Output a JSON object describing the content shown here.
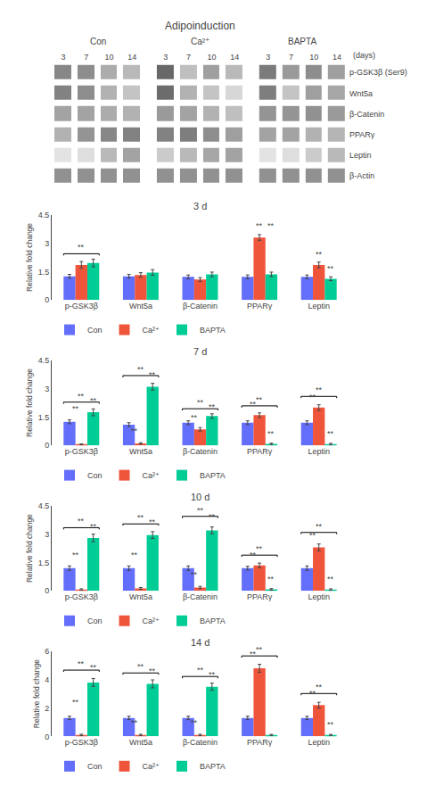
{
  "chart_data": [
    {
      "type": "heatmap",
      "title": "Adipoinduction",
      "groups": [
        "Con",
        "Ca²⁺",
        "BAPTA"
      ],
      "categories": [
        "3",
        "7",
        "10",
        "14"
      ],
      "xlabel": "(days)",
      "rows": [
        "p-GSK3β (Ser9)",
        "Wnt5a",
        "β-Catenin",
        "PPARγ",
        "Leptin",
        "β-Actin"
      ],
      "cells": [
        [
          [
            0.65,
            0.62,
            0.45,
            0.38
          ],
          [
            0.82,
            0.35,
            0.52,
            0.38
          ],
          [
            0.72,
            0.55,
            0.62,
            0.52
          ]
        ],
        [
          [
            0.68,
            0.62,
            0.42,
            0.32
          ],
          [
            0.8,
            0.42,
            0.32,
            0.22
          ],
          [
            0.7,
            0.32,
            0.52,
            0.48
          ]
        ],
        [
          [
            0.5,
            0.5,
            0.45,
            0.42
          ],
          [
            0.55,
            0.5,
            0.42,
            0.35
          ],
          [
            0.58,
            0.58,
            0.6,
            0.55
          ]
        ],
        [
          [
            0.42,
            0.58,
            0.65,
            0.68
          ],
          [
            0.68,
            0.7,
            0.62,
            0.52
          ],
          [
            0.5,
            0.5,
            0.42,
            0.4
          ]
        ],
        [
          [
            0.15,
            0.18,
            0.38,
            0.5
          ],
          [
            0.28,
            0.38,
            0.48,
            0.5
          ],
          [
            0.15,
            0.18,
            0.28,
            0.38
          ]
        ],
        [
          [
            0.6,
            0.6,
            0.6,
            0.6
          ],
          [
            0.6,
            0.6,
            0.6,
            0.6
          ],
          [
            0.6,
            0.6,
            0.6,
            0.6
          ]
        ]
      ],
      "zlim": [
        0,
        1
      ]
    },
    {
      "type": "bar",
      "title": "3 d",
      "categories": [
        "p-GSK3β",
        "Wnt5a",
        "β-Catenin",
        "PPARγ",
        "Leptin"
      ],
      "ylabel": "Relative fold change",
      "ylim": [
        0,
        4.5
      ],
      "yticks": [
        0,
        1.5,
        3,
        4.5
      ],
      "grid": false,
      "legend": "bottom",
      "series": [
        {
          "name": "Con",
          "color": "#636efa",
          "values": [
            1.25,
            1.25,
            1.22,
            1.22,
            1.22
          ],
          "errors": [
            0.1,
            0.1,
            0.1,
            0.1,
            0.1
          ]
        },
        {
          "name": "Ca²⁺",
          "color": "#EF553B",
          "values": [
            1.85,
            1.32,
            1.08,
            3.3,
            1.85
          ],
          "errors": [
            0.18,
            0.12,
            0.1,
            0.15,
            0.15
          ]
        },
        {
          "name": "BAPTA",
          "color": "#00cc96",
          "values": [
            1.95,
            1.45,
            1.35,
            1.35,
            1.12
          ],
          "errors": [
            0.2,
            0.15,
            0.12,
            0.12,
            0.1
          ]
        }
      ],
      "annotations": [
        {
          "text": "**",
          "category": "p-GSK3β",
          "series": [
            "Con",
            "BAPTA"
          ],
          "y": 2.35,
          "shape": "bracket"
        },
        {
          "text": "**",
          "category": "PPARγ",
          "series": "Ca²⁺",
          "y": 3.6
        },
        {
          "text": "**",
          "category": "PPARγ",
          "series": "BAPTA",
          "y": 3.6
        },
        {
          "text": "**",
          "category": "Leptin",
          "series": "Ca²⁺",
          "y": 2.1
        },
        {
          "text": "**",
          "category": "Leptin",
          "series": "BAPTA",
          "y": 1.35
        }
      ]
    },
    {
      "type": "bar",
      "title": "7 d",
      "categories": [
        "p-GSK3β",
        "Wnt5a",
        "β-Catenin",
        "PPARγ",
        "Leptin"
      ],
      "ylabel": "Relative fold change",
      "ylim": [
        0,
        4.5
      ],
      "yticks": [
        0,
        1.5,
        3,
        4.5
      ],
      "grid": false,
      "legend": "bottom",
      "series": [
        {
          "name": "Con",
          "color": "#636efa",
          "values": [
            1.25,
            1.1,
            1.2,
            1.2,
            1.2
          ],
          "errors": [
            0.1,
            0.1,
            0.1,
            0.1,
            0.1
          ]
        },
        {
          "name": "Ca²⁺",
          "color": "#EF553B",
          "values": [
            0.05,
            0.1,
            0.85,
            1.6,
            2.0
          ],
          "errors": [
            0.03,
            0.04,
            0.09,
            0.12,
            0.15
          ]
        },
        {
          "name": "BAPTA",
          "color": "#00cc96",
          "values": [
            1.75,
            3.1,
            1.55,
            0.08,
            0.07
          ],
          "errors": [
            0.18,
            0.18,
            0.12,
            0.04,
            0.04
          ]
        }
      ],
      "annotations": [
        {
          "text": "**",
          "category": "p-GSK3β",
          "series": [
            "Con",
            "BAPTA"
          ],
          "y": 2.2,
          "shape": "bracket"
        },
        {
          "text": "**",
          "category": "p-GSK3β",
          "series": [
            "Con",
            "Ca²⁺"
          ],
          "y": 1.6
        },
        {
          "text": "**",
          "category": "p-GSK3β",
          "series": "BAPTA",
          "y": 2.05
        },
        {
          "text": "**",
          "category": "Wnt5a",
          "series": [
            "Con",
            "BAPTA"
          ],
          "y": 3.6,
          "shape": "bracket"
        },
        {
          "text": "**",
          "category": "Wnt5a",
          "series": [
            "Con",
            "Ca²⁺"
          ],
          "y": 0.45
        },
        {
          "text": "**",
          "category": "Wnt5a",
          "series": "BAPTA",
          "y": 3.4
        },
        {
          "text": "**",
          "category": "β-Catenin",
          "series": [
            "Con",
            "BAPTA"
          ],
          "y": 1.85,
          "shape": "bracket"
        },
        {
          "text": "**",
          "category": "β-Catenin",
          "series": [
            "Con",
            "Ca²⁺"
          ],
          "y": 1.15
        },
        {
          "text": "**",
          "category": "β-Catenin",
          "series": "BAPTA",
          "y": 1.7
        },
        {
          "text": "**",
          "category": "PPARγ",
          "series": [
            "Con",
            "BAPTA"
          ],
          "y": 2.0,
          "shape": "bracket"
        },
        {
          "text": "**",
          "category": "PPARγ",
          "series": [
            "Con",
            "Ca²⁺"
          ],
          "y": 1.85
        },
        {
          "text": "**",
          "category": "PPARγ",
          "series": "BAPTA",
          "y": 0.3
        },
        {
          "text": "**",
          "category": "Leptin",
          "series": [
            "Con",
            "BAPTA"
          ],
          "y": 2.5,
          "shape": "bracket"
        },
        {
          "text": "**",
          "category": "Leptin",
          "series": [
            "Con",
            "Ca²⁺"
          ],
          "y": 2.25
        },
        {
          "text": "**",
          "category": "Leptin",
          "series": "BAPTA",
          "y": 0.28
        }
      ]
    },
    {
      "type": "bar",
      "title": "10 d",
      "categories": [
        "p-GSK3β",
        "Wnt5a",
        "β-Catenin",
        "PPARγ",
        "Leptin"
      ],
      "ylabel": "Relative fold change",
      "ylim": [
        0,
        4.5
      ],
      "yticks": [
        0,
        1.5,
        3,
        4.5
      ],
      "grid": false,
      "legend": "bottom",
      "series": [
        {
          "name": "Con",
          "color": "#636efa",
          "values": [
            1.2,
            1.2,
            1.2,
            1.2,
            1.2
          ],
          "errors": [
            0.12,
            0.12,
            0.12,
            0.1,
            0.12
          ]
        },
        {
          "name": "Ca²⁺",
          "color": "#EF553B",
          "values": [
            0.07,
            0.13,
            0.18,
            1.35,
            2.3
          ],
          "errors": [
            0.04,
            0.05,
            0.06,
            0.12,
            0.18
          ]
        },
        {
          "name": "BAPTA",
          "color": "#00cc96",
          "values": [
            2.8,
            2.95,
            3.2,
            0.08,
            0.07
          ],
          "errors": [
            0.2,
            0.18,
            0.18,
            0.04,
            0.04
          ]
        }
      ],
      "annotations": [
        {
          "text": "**",
          "category": "p-GSK3β",
          "series": [
            "Con",
            "BAPTA"
          ],
          "y": 3.25,
          "shape": "bracket"
        },
        {
          "text": "**",
          "category": "p-GSK3β",
          "series": [
            "Con",
            "Ca²⁺"
          ],
          "y": 1.55
        },
        {
          "text": "**",
          "category": "p-GSK3β",
          "series": "BAPTA",
          "y": 3.1
        },
        {
          "text": "**",
          "category": "Wnt5a",
          "series": [
            "Con",
            "BAPTA"
          ],
          "y": 3.45,
          "shape": "bracket"
        },
        {
          "text": "**",
          "category": "Wnt5a",
          "series": [
            "Con",
            "Ca²⁺"
          ],
          "y": 1.55
        },
        {
          "text": "**",
          "category": "Wnt5a",
          "series": "BAPTA",
          "y": 3.3
        },
        {
          "text": "**",
          "category": "β-Catenin",
          "series": [
            "Con",
            "BAPTA"
          ],
          "y": 3.85,
          "shape": "bracket"
        },
        {
          "text": "**",
          "category": "β-Catenin",
          "series": [
            "Con",
            "Ca²⁺"
          ],
          "y": 0.55
        },
        {
          "text": "**",
          "category": "β-Catenin",
          "series": "BAPTA",
          "y": 3.6
        },
        {
          "text": "**",
          "category": "PPARγ",
          "series": [
            "Con",
            "BAPTA"
          ],
          "y": 1.8,
          "shape": "bracket"
        },
        {
          "text": "**",
          "category": "PPARγ",
          "series": [
            "Con",
            "Ca²⁺"
          ],
          "y": 1.55
        },
        {
          "text": "**",
          "category": "PPARγ",
          "series": "BAPTA",
          "y": 0.3
        },
        {
          "text": "**",
          "category": "Leptin",
          "series": [
            "Con",
            "BAPTA"
          ],
          "y": 3.0,
          "shape": "bracket"
        },
        {
          "text": "**",
          "category": "Leptin",
          "series": [
            "Con",
            "Ca²⁺"
          ],
          "y": 2.6
        },
        {
          "text": "**",
          "category": "Leptin",
          "series": "BAPTA",
          "y": 0.3
        }
      ]
    },
    {
      "type": "bar",
      "title": "14 d",
      "categories": [
        "p-GSK3β",
        "Wnt5a",
        "β-Catenin",
        "PPARγ",
        "Leptin"
      ],
      "ylabel": "Relative fold change",
      "ylim": [
        0,
        6
      ],
      "yticks": [
        0,
        2,
        4,
        6
      ],
      "grid": false,
      "legend": "bottom",
      "series": [
        {
          "name": "Con",
          "color": "#636efa",
          "values": [
            1.3,
            1.3,
            1.3,
            1.3,
            1.3
          ],
          "errors": [
            0.12,
            0.12,
            0.12,
            0.12,
            0.12
          ]
        },
        {
          "name": "Ca²⁺",
          "color": "#EF553B",
          "values": [
            0.1,
            0.1,
            0.1,
            4.8,
            2.2
          ],
          "errors": [
            0.05,
            0.05,
            0.05,
            0.28,
            0.2
          ]
        },
        {
          "name": "BAPTA",
          "color": "#00cc96",
          "values": [
            3.8,
            3.7,
            3.5,
            0.1,
            0.1
          ],
          "errors": [
            0.28,
            0.28,
            0.25,
            0.04,
            0.04
          ]
        }
      ],
      "annotations": [
        {
          "text": "**",
          "category": "p-GSK3β",
          "series": [
            "Con",
            "BAPTA"
          ],
          "y": 4.55,
          "shape": "bracket"
        },
        {
          "text": "**",
          "category": "p-GSK3β",
          "series": [
            "Con",
            "Ca²⁺"
          ],
          "y": 2.0
        },
        {
          "text": "**",
          "category": "p-GSK3β",
          "series": "BAPTA",
          "y": 4.4
        },
        {
          "text": "**",
          "category": "Wnt5a",
          "series": [
            "Con",
            "BAPTA"
          ],
          "y": 4.35,
          "shape": "bracket"
        },
        {
          "text": "**",
          "category": "Wnt5a",
          "series": [
            "Con",
            "Ca²⁺"
          ],
          "y": 0.55
        },
        {
          "text": "**",
          "category": "Wnt5a",
          "series": "BAPTA",
          "y": 4.2
        },
        {
          "text": "**",
          "category": "β-Catenin",
          "series": [
            "Con",
            "BAPTA"
          ],
          "y": 4.1,
          "shape": "bracket"
        },
        {
          "text": "**",
          "category": "β-Catenin",
          "series": [
            "Con",
            "Ca²⁺"
          ],
          "y": 0.55
        },
        {
          "text": "**",
          "category": "β-Catenin",
          "series": "BAPTA",
          "y": 3.9
        },
        {
          "text": "**",
          "category": "PPARγ",
          "series": [
            "Con",
            "BAPTA"
          ],
          "y": 5.55,
          "shape": "bracket"
        },
        {
          "text": "**",
          "category": "PPARγ",
          "series": [
            "Con",
            "Ca²⁺"
          ],
          "y": 5.35
        },
        {
          "text": "**",
          "category": "Leptin",
          "series": [
            "Con",
            "BAPTA"
          ],
          "y": 2.9,
          "shape": "bracket"
        },
        {
          "text": "**",
          "category": "Leptin",
          "series": [
            "Con",
            "Ca²⁺"
          ],
          "y": 2.6
        },
        {
          "text": "**",
          "category": "Leptin",
          "series": "BAPTA",
          "y": 0.4
        }
      ]
    }
  ]
}
